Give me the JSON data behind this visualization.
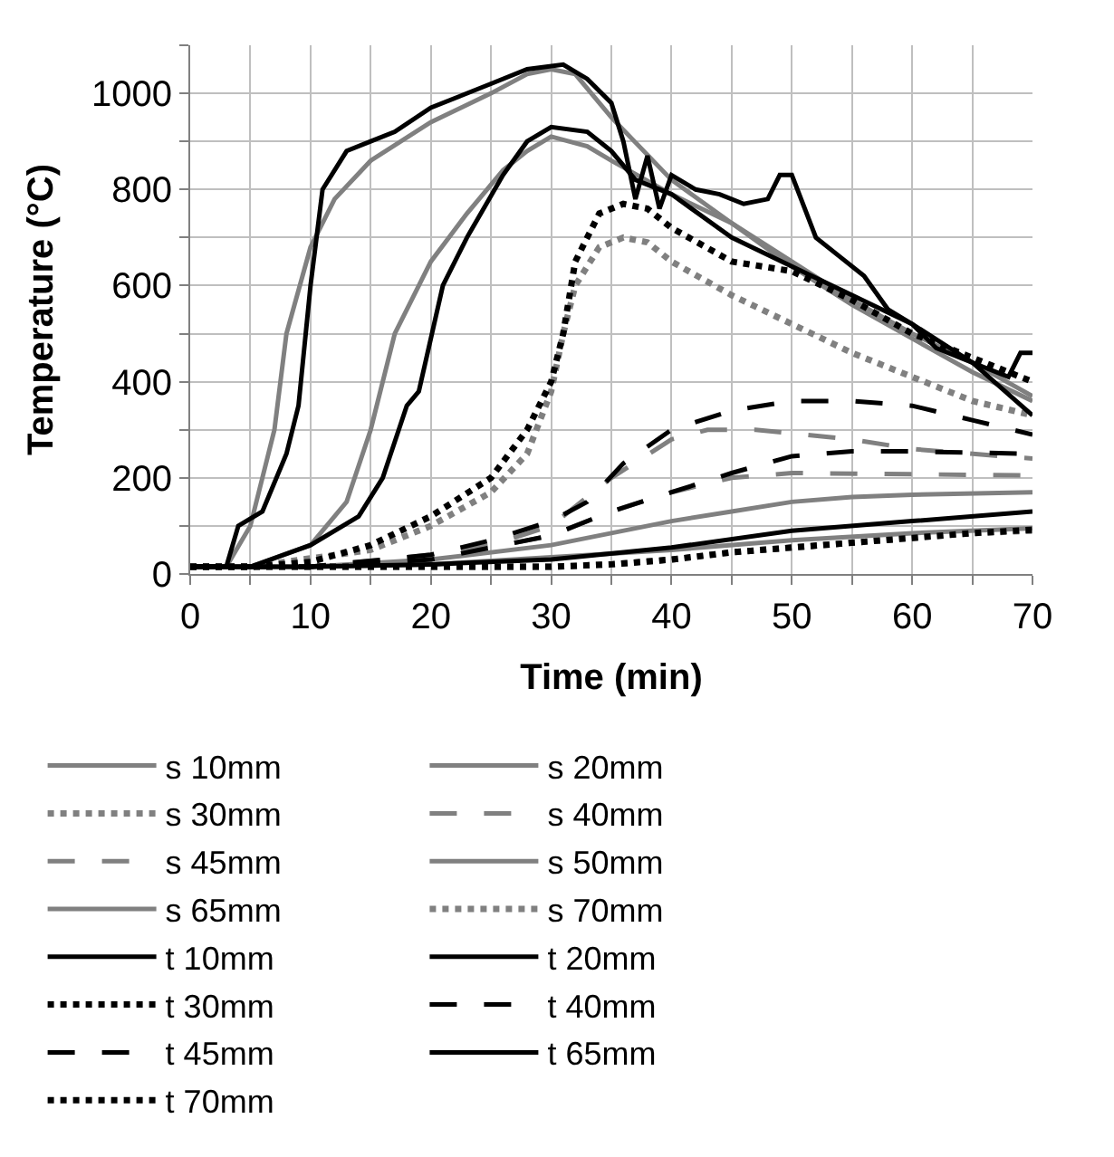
{
  "chart_data": {
    "type": "line",
    "xlabel": "Time (min)",
    "ylabel": "Temperature (°C)",
    "xlim": [
      0,
      70
    ],
    "ylim": [
      0,
      1100
    ],
    "xticks": [
      0,
      {
        "value": 5,
        "label": null
      },
      10,
      {
        "value": 15,
        "label": null
      },
      20,
      {
        "value": 25,
        "label": null
      },
      30,
      {
        "value": 35,
        "label": null
      },
      40,
      {
        "value": 45,
        "label": null
      },
      50,
      {
        "value": 55,
        "label": null
      },
      60,
      {
        "value": 65,
        "label": null
      },
      70
    ],
    "yticks": [
      0,
      {
        "value": 100,
        "label": null
      },
      200,
      {
        "value": 300,
        "label": null
      },
      400,
      {
        "value": 500,
        "label": null
      },
      600,
      {
        "value": 700,
        "label": null
      },
      800,
      {
        "value": 900,
        "label": null
      },
      1000,
      {
        "value": 1100,
        "label": null
      }
    ],
    "grid": true,
    "legend": "bottom",
    "marker": "none",
    "series": [
      {
        "name": "s 10mm",
        "color": "#808080",
        "line_style": "solid",
        "x": [
          0,
          3,
          5,
          7,
          8,
          10,
          12,
          15,
          20,
          25,
          28,
          30,
          32,
          35,
          40,
          45,
          50,
          55,
          60,
          65,
          70
        ],
        "values": [
          15,
          15,
          100,
          300,
          500,
          680,
          780,
          860,
          940,
          1000,
          1040,
          1050,
          1040,
          950,
          820,
          730,
          640,
          560,
          490,
          420,
          360
        ]
      },
      {
        "name": "s 20mm",
        "color": "#808080",
        "line_style": "solid",
        "x": [
          0,
          5,
          10,
          13,
          15,
          17,
          20,
          23,
          26,
          28,
          30,
          33,
          35,
          40,
          45,
          50,
          55,
          60,
          65,
          70
        ],
        "values": [
          15,
          15,
          60,
          150,
          300,
          500,
          650,
          750,
          840,
          880,
          910,
          890,
          860,
          790,
          730,
          650,
          570,
          500,
          440,
          370
        ]
      },
      {
        "name": "s 30mm",
        "color": "#808080",
        "line_style": "dotted",
        "x": [
          0,
          5,
          15,
          20,
          25,
          28,
          30,
          31,
          32,
          34,
          36,
          38,
          40,
          45,
          50,
          55,
          60,
          65,
          70
        ],
        "values": [
          15,
          15,
          50,
          100,
          170,
          250,
          380,
          500,
          600,
          680,
          700,
          690,
          650,
          580,
          520,
          460,
          410,
          360,
          330
        ]
      },
      {
        "name": "s 40mm",
        "color": "#808080",
        "line_style": "dashed",
        "x": [
          0,
          10,
          20,
          25,
          30,
          35,
          40,
          43,
          47,
          55,
          60,
          70
        ],
        "values": [
          15,
          15,
          40,
          60,
          100,
          200,
          280,
          300,
          300,
          280,
          260,
          240
        ]
      },
      {
        "name": "s 45mm",
        "color": "#808080",
        "line_style": "dashed",
        "x": [
          0,
          10,
          20,
          30,
          35,
          40,
          45,
          50,
          70
        ],
        "values": [
          15,
          15,
          30,
          80,
          130,
          170,
          200,
          210,
          205
        ]
      },
      {
        "name": "s 50mm",
        "color": "#808080",
        "line_style": "solid",
        "x": [
          0,
          10,
          20,
          30,
          40,
          45,
          50,
          55,
          60,
          70
        ],
        "values": [
          15,
          15,
          30,
          60,
          110,
          130,
          150,
          160,
          165,
          170
        ]
      },
      {
        "name": "s 65mm",
        "color": "#808080",
        "line_style": "solid",
        "x": [
          0,
          10,
          20,
          30,
          40,
          50,
          60,
          70
        ],
        "values": [
          15,
          15,
          20,
          35,
          50,
          70,
          85,
          95
        ]
      },
      {
        "name": "s 70mm",
        "color": "#808080",
        "line_style": "dotted",
        "x": [
          0,
          30,
          35,
          40,
          45,
          50,
          55,
          60,
          65,
          70
        ],
        "values": [
          15,
          15,
          20,
          30,
          45,
          55,
          65,
          75,
          85,
          90
        ]
      },
      {
        "name": "t 10mm",
        "color": "#000000",
        "line_style": "solid",
        "x": [
          0,
          3,
          4,
          6,
          8,
          9,
          10,
          11,
          13,
          15,
          17,
          20,
          25,
          28,
          31,
          33,
          35,
          36,
          37,
          38,
          39,
          40,
          42,
          44,
          46,
          48,
          49,
          50,
          52,
          54,
          56,
          58,
          60,
          62,
          64,
          66,
          68,
          69,
          70
        ],
        "values": [
          15,
          15,
          100,
          130,
          250,
          350,
          600,
          800,
          880,
          900,
          920,
          970,
          1020,
          1050,
          1060,
          1030,
          980,
          900,
          780,
          870,
          760,
          830,
          800,
          790,
          770,
          780,
          830,
          830,
          700,
          660,
          620,
          550,
          520,
          470,
          450,
          430,
          410,
          460,
          460
        ]
      },
      {
        "name": "t 20mm",
        "color": "#000000",
        "line_style": "solid",
        "x": [
          0,
          5,
          10,
          14,
          16,
          18,
          19,
          21,
          23,
          26,
          28,
          30,
          33,
          35,
          37,
          40,
          45,
          50,
          55,
          60,
          65,
          70
        ],
        "values": [
          15,
          15,
          60,
          120,
          200,
          350,
          380,
          600,
          700,
          830,
          900,
          930,
          920,
          880,
          820,
          790,
          700,
          640,
          580,
          520,
          440,
          330
        ]
      },
      {
        "name": "t 30mm",
        "color": "#000000",
        "line_style": "dotted",
        "x": [
          0,
          5,
          10,
          15,
          20,
          25,
          28,
          30,
          31,
          32,
          34,
          36,
          38,
          40,
          45,
          50,
          55,
          60,
          65,
          70
        ],
        "values": [
          15,
          15,
          25,
          60,
          120,
          200,
          300,
          400,
          500,
          650,
          750,
          770,
          760,
          720,
          650,
          630,
          570,
          500,
          450,
          400
        ]
      },
      {
        "name": "t 40mm",
        "color": "#000000",
        "line_style": "dashed",
        "x": [
          0,
          10,
          20,
          25,
          30,
          33,
          36,
          40,
          45,
          50,
          55,
          60,
          65,
          70
        ],
        "values": [
          15,
          15,
          40,
          70,
          110,
          150,
          230,
          300,
          340,
          360,
          360,
          350,
          320,
          290
        ]
      },
      {
        "name": "t 45mm",
        "color": "#000000",
        "line_style": "dashed",
        "x": [
          0,
          10,
          20,
          30,
          35,
          40,
          45,
          50,
          55,
          60,
          70
        ],
        "values": [
          15,
          15,
          30,
          80,
          130,
          170,
          210,
          245,
          255,
          255,
          250
        ]
      },
      {
        "name": "t 65mm",
        "color": "#000000",
        "line_style": "solid",
        "x": [
          0,
          10,
          20,
          30,
          40,
          50,
          60,
          70
        ],
        "values": [
          15,
          15,
          20,
          30,
          55,
          90,
          110,
          130
        ]
      },
      {
        "name": "t 70mm",
        "color": "#000000",
        "line_style": "dotted",
        "x": [
          0,
          30,
          35,
          40,
          45,
          50,
          55,
          60,
          65,
          70
        ],
        "values": [
          15,
          15,
          20,
          30,
          45,
          55,
          65,
          75,
          85,
          92
        ]
      }
    ]
  }
}
